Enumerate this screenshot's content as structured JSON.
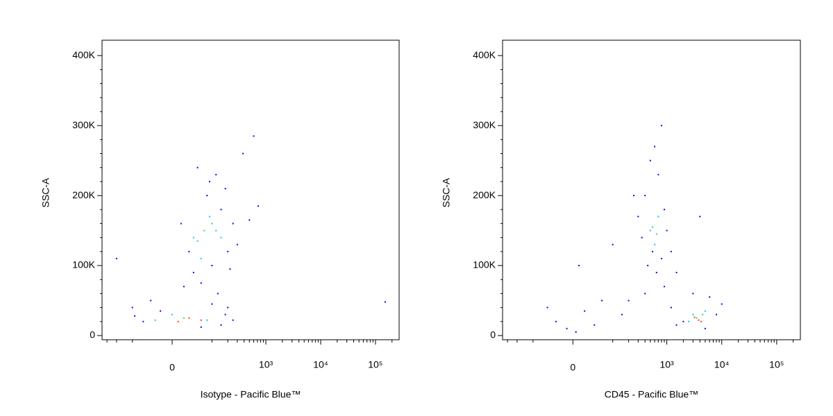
{
  "chart_data": [
    {
      "type": "scatter",
      "x_label": "Isotype - Pacific Blue™",
      "y_label": "SSC-A",
      "xscale": "biexponential",
      "xlim": [
        -370,
        270000
      ],
      "ylim": [
        -6000,
        422000
      ],
      "xticks": [
        0,
        {
          "value": 1000,
          "label": "10³"
        },
        {
          "value": 10000,
          "label": "10⁴"
        },
        {
          "value": 100000,
          "label": "10⁵"
        }
      ],
      "xminorticks": [
        -300,
        -200,
        -100,
        100,
        200,
        300,
        400,
        500,
        600,
        700,
        800,
        900,
        2000,
        3000,
        4000,
        5000,
        6000,
        7000,
        8000,
        9000,
        20000,
        30000,
        40000,
        50000,
        60000,
        70000,
        80000,
        90000,
        200000
      ],
      "yticks": [
        0,
        {
          "value": 100000,
          "label": "100K"
        },
        {
          "value": 200000,
          "label": "200K"
        },
        {
          "value": 300000,
          "label": "300K"
        },
        {
          "value": 400000,
          "label": "400K"
        }
      ],
      "yminorticks": [
        20000,
        40000,
        60000,
        80000,
        120000,
        140000,
        160000,
        180000,
        220000,
        240000,
        260000,
        280000,
        320000,
        340000,
        360000,
        380000
      ],
      "series": [
        {
          "color": "#0000ff",
          "x": [
            -60,
            -20,
            150,
            200,
            -90,
            100,
            250,
            60,
            -40,
            180,
            20,
            40,
            30,
            80,
            120,
            150,
            200,
            50,
            100,
            250,
            180,
            15,
            300,
            60,
            130,
            90,
            220,
            380,
            600,
            725,
            150000,
            500,
            -200,
            -100
          ],
          "y": [
            20000,
            35000,
            15000,
            40000,
            28000,
            45000,
            22000,
            12000,
            50000,
            30000,
            70000,
            90000,
            120000,
            200000,
            230000,
            180000,
            120000,
            240000,
            100000,
            160000,
            210000,
            160000,
            130000,
            75000,
            60000,
            220000,
            95000,
            260000,
            285000,
            185000,
            48000,
            165000,
            110000,
            40000
          ]
        },
        {
          "color": "#00c8ff",
          "x": [
            0,
            80,
            -30,
            40,
            90,
            60,
            120,
            150
          ],
          "y": [
            30000,
            22000,
            22000,
            140000,
            170000,
            110000,
            150000,
            140000
          ]
        },
        {
          "color": "#30d850",
          "x": [
            20,
            70,
            100,
            50
          ],
          "y": [
            25000,
            150000,
            160000,
            135000
          ]
        },
        {
          "color": "#ff3a00",
          "x": [
            30,
            60,
            10
          ],
          "y": [
            25000,
            22000,
            20000
          ]
        }
      ]
    },
    {
      "type": "scatter",
      "x_label": "CD45 - Pacific Blue™",
      "y_label": "SSC-A",
      "xscale": "biexponential",
      "xlim": [
        -370,
        270000
      ],
      "ylim": [
        -6000,
        422000
      ],
      "xticks": [
        0,
        {
          "value": 1000,
          "label": "10³"
        },
        {
          "value": 10000,
          "label": "10⁴"
        },
        {
          "value": 100000,
          "label": "10⁵"
        }
      ],
      "xminorticks": [
        -300,
        -200,
        -100,
        100,
        200,
        300,
        400,
        500,
        600,
        700,
        800,
        900,
        2000,
        3000,
        4000,
        5000,
        6000,
        7000,
        8000,
        9000,
        20000,
        30000,
        40000,
        50000,
        60000,
        70000,
        80000,
        90000,
        200000
      ],
      "yticks": [
        0,
        {
          "value": 100000,
          "label": "100K"
        },
        {
          "value": 200000,
          "label": "200K"
        },
        {
          "value": 300000,
          "label": "300K"
        },
        {
          "value": 400000,
          "label": "400K"
        }
      ],
      "yminorticks": [
        20000,
        40000,
        60000,
        80000,
        120000,
        140000,
        160000,
        180000,
        220000,
        240000,
        260000,
        280000,
        320000,
        340000,
        360000,
        380000
      ],
      "series": [
        {
          "color": "#0000ff",
          "x": [
            400,
            500,
            700,
            900,
            350,
            800,
            450,
            600,
            1000,
            300,
            650,
            550,
            2000,
            8000,
            10000,
            1500,
            6000,
            3000,
            1200,
            5000,
            -30,
            -10,
            20,
            40,
            -50,
            60,
            5,
            10,
            200,
            400,
            900,
            1500,
            100,
            250,
            1200,
            4000,
            800,
            150
          ],
          "y": [
            200000,
            250000,
            230000,
            180000,
            140000,
            110000,
            100000,
            270000,
            150000,
            170000,
            90000,
            120000,
            20000,
            30000,
            45000,
            15000,
            55000,
            60000,
            40000,
            10000,
            20000,
            10000,
            35000,
            15000,
            40000,
            50000,
            5000,
            100000,
            50000,
            60000,
            70000,
            90000,
            130000,
            200000,
            120000,
            170000,
            300000,
            30000
          ]
        },
        {
          "color": "#00c8ff",
          "x": [
            500,
            700,
            600,
            3000,
            5000,
            2500
          ],
          "y": [
            150000,
            170000,
            130000,
            30000,
            35000,
            20000
          ]
        },
        {
          "color": "#30d850",
          "x": [
            550,
            650,
            3500,
            4500
          ],
          "y": [
            155000,
            145000,
            25000,
            30000
          ]
        },
        {
          "color": "#ff3a00",
          "x": [
            3800,
            3200,
            4200
          ],
          "y": [
            22000,
            26000,
            20000
          ]
        }
      ]
    }
  ]
}
